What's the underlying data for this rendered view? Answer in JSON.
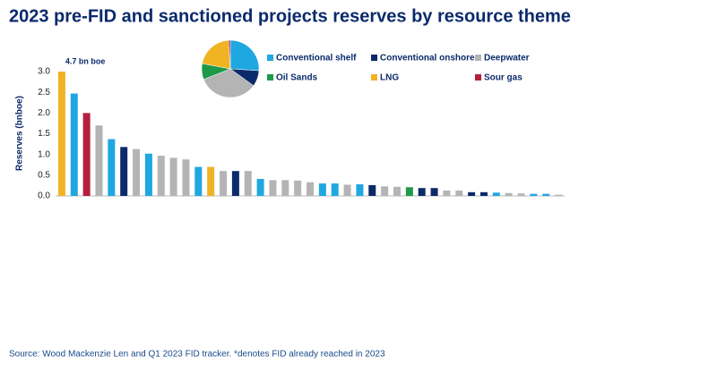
{
  "chart_data": [
    {
      "type": "bar",
      "title": "2023 pre-FID and sanctioned projects reserves by resource theme",
      "ylabel": "Reserves (bnboe)",
      "annotation": "4.7 bn boe",
      "source": "Source: Wood Mackenzie Len and Q1 2023 FID tracker. *denotes FID already reached in 2023",
      "categories": [
        null,
        null,
        null,
        null,
        null,
        null,
        null,
        null,
        null,
        null,
        null,
        null,
        null,
        null,
        null,
        null,
        null,
        null,
        null,
        null,
        null,
        null,
        null,
        null,
        null,
        null,
        null,
        null,
        null,
        null,
        null,
        null,
        null,
        null,
        null,
        null,
        null,
        null,
        null,
        null,
        null
      ],
      "values": [
        3.0,
        2.47,
        2.0,
        1.7,
        1.37,
        1.18,
        1.13,
        1.02,
        0.97,
        0.92,
        0.88,
        0.7,
        0.7,
        0.6,
        0.6,
        0.6,
        0.41,
        0.38,
        0.38,
        0.37,
        0.33,
        0.3,
        0.3,
        0.27,
        0.28,
        0.26,
        0.23,
        0.22,
        0.21,
        0.19,
        0.19,
        0.13,
        0.13,
        0.09,
        0.09,
        0.08,
        0.07,
        0.06,
        0.05,
        0.05,
        0.03
      ],
      "colors": [
        "#f0b323",
        "#1fa7e1",
        "#b51f3d",
        "#b4b4b4",
        "#1fa7e1",
        "#0b2a6b",
        "#b4b4b4",
        "#1fa7e1",
        "#b4b4b4",
        "#b4b4b4",
        "#b4b4b4",
        "#1fa7e1",
        "#f0b323",
        "#b4b4b4",
        "#0b2a6b",
        "#b4b4b4",
        "#1fa7e1",
        "#b4b4b4",
        "#b4b4b4",
        "#b4b4b4",
        "#b4b4b4",
        "#1fa7e1",
        "#1fa7e1",
        "#b4b4b4",
        "#1fa7e1",
        "#0b2a6b",
        "#b4b4b4",
        "#b4b4b4",
        "#1d9a48",
        "#0b2a6b",
        "#0b2a6b",
        "#b4b4b4",
        "#b4b4b4",
        "#0b2a6b",
        "#0b2a6b",
        "#1fa7e1",
        "#b4b4b4",
        "#b4b4b4",
        "#1fa7e1",
        "#1fa7e1",
        "#b4b4b4"
      ],
      "ylim": [
        0,
        3.0
      ],
      "yticks": [
        {
          "value": 0,
          "label": "0.0"
        },
        0.5,
        {
          "value": 1,
          "label": "1.0"
        },
        1.5,
        {
          "value": 2,
          "label": "2.0"
        },
        2.5,
        {
          "value": 3,
          "label": "3.0"
        }
      ],
      "grid": false
    },
    {
      "type": "pie",
      "categories": [
        "Conventional shelf",
        "Conventional onshore",
        "Deepwater",
        "Oil Sands",
        "LNG",
        "Sour gas"
      ],
      "values": [
        26,
        9,
        34,
        9,
        21,
        1
      ],
      "colors": [
        "#1fa7e1",
        "#0b2a6b",
        "#b4b4b4",
        "#1d9a48",
        "#f0b323",
        "#b51f3d"
      ]
    }
  ]
}
